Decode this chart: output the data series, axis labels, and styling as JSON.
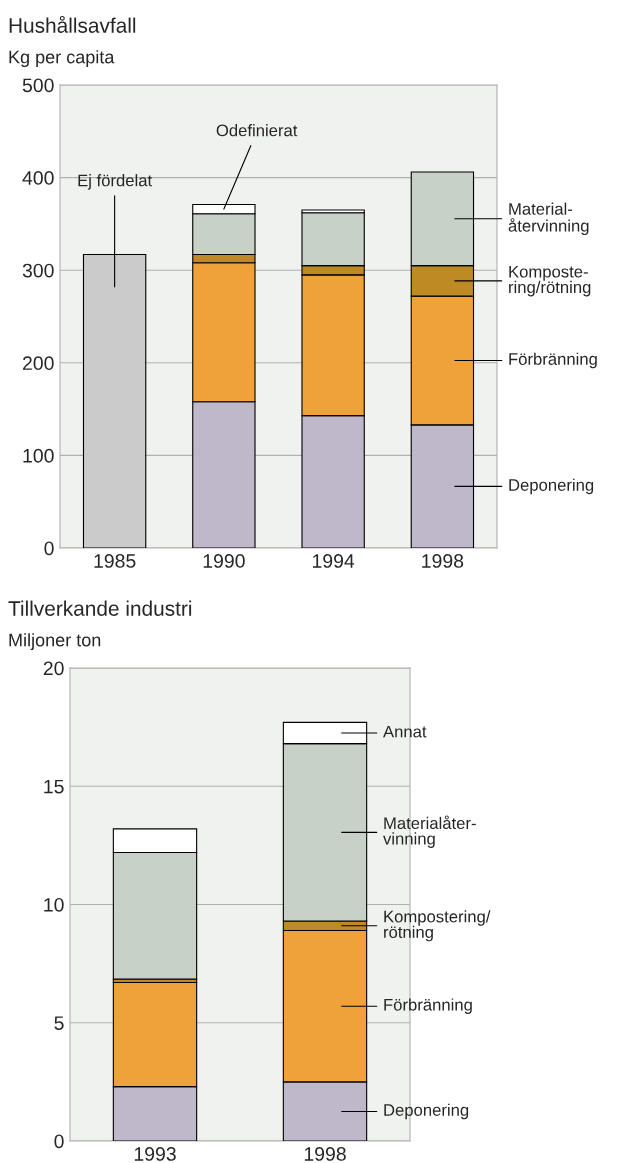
{
  "chart_data": [
    {
      "type": "bar",
      "title": "Hushållsavfall",
      "ylabel": "Kg per capita",
      "stacked": true,
      "legend": "right",
      "grid": "y",
      "categories": [
        "1985",
        "1990",
        "1994",
        "1998"
      ],
      "ylim": [
        0,
        500
      ],
      "yticks": [
        0,
        100,
        200,
        300,
        400,
        500
      ],
      "series": [
        {
          "name": "Ej fördelat",
          "color": "#cbcbcb",
          "values": [
            317,
            null,
            null,
            null
          ]
        },
        {
          "name": "Deponering",
          "color": "#bfb8cb",
          "values": [
            null,
            158,
            143,
            133
          ]
        },
        {
          "name": "Förbränning",
          "color": "#f0a23a",
          "values": [
            null,
            150,
            152,
            139
          ]
        },
        {
          "name": "Komposte-\nring/rötning",
          "color": "#bd8a23",
          "values": [
            null,
            9,
            10,
            33
          ]
        },
        {
          "name": "Material-\nåtervinning",
          "color": "#c8d1c8",
          "values": [
            null,
            44,
            57,
            101
          ]
        },
        {
          "name": "Odefinierat",
          "color": "#ffffff",
          "values": [
            null,
            10,
            3,
            null
          ]
        }
      ]
    },
    {
      "type": "bar",
      "title": "Tillverkande industri",
      "ylabel": "Miljoner ton",
      "stacked": true,
      "legend": "right",
      "grid": "y",
      "categories": [
        "1993",
        "1998"
      ],
      "ylim": [
        0,
        20
      ],
      "yticks": [
        0,
        5,
        10,
        15,
        20
      ],
      "series": [
        {
          "name": "Deponering",
          "color": "#bfb8cb",
          "values": [
            2.3,
            2.5
          ]
        },
        {
          "name": "Förbränning",
          "color": "#f0a23a",
          "values": [
            4.4,
            6.4
          ]
        },
        {
          "name": "Kompostering/\nrötning",
          "color": "#bd8a23",
          "values": [
            0.15,
            0.4
          ]
        },
        {
          "name": "Materialåter-\nvinning",
          "color": "#c8d1c8",
          "values": [
            5.35,
            7.5
          ]
        },
        {
          "name": "Annat",
          "color": "#ffffff",
          "values": [
            1.0,
            0.9
          ]
        }
      ]
    }
  ]
}
